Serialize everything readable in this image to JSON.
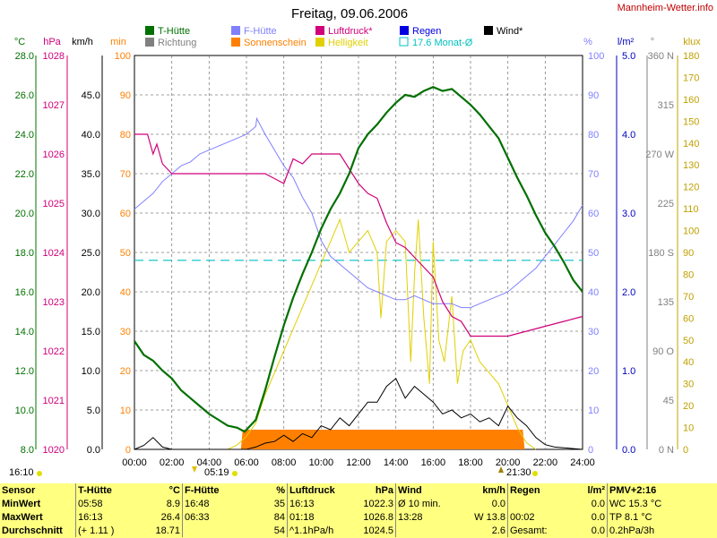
{
  "title": "Freitag, 09.06.2006",
  "site": "Mannheim-Wetter.info",
  "legend": [
    {
      "label": "T-Hütte",
      "color": "#007000"
    },
    {
      "label": "F-Hütte",
      "color": "#8080ff"
    },
    {
      "label": "Luftdruck*",
      "color": "#d0007a"
    },
    {
      "label": "Regen",
      "color": "#0000e0"
    },
    {
      "label": "Wind*",
      "color": "#000000"
    },
    {
      "label": "Richtung",
      "color": "#808080"
    },
    {
      "label": "Sonnenschein",
      "color": "#ff8000"
    },
    {
      "label": "Helligkeit",
      "color": "#e0d000"
    },
    {
      "label": "17.6 Monat-Ø",
      "color": "#00c0c0"
    }
  ],
  "axis_units": {
    "temp": "°C",
    "press": "hPa",
    "wind": "km/h",
    "min": "min",
    "pct": "%",
    "rain": "l/m²",
    "dir": "°",
    "klux": "klux"
  },
  "axis_ticks": {
    "temp": [
      "28.0",
      "26.0",
      "24.0",
      "22.0",
      "20.0",
      "18.0",
      "16.0",
      "14.0",
      "12.0",
      "10.0",
      "8.0"
    ],
    "press": [
      "1028",
      "1027",
      "1026",
      "1025",
      "1024",
      "1023",
      "1022",
      "1021",
      "1020"
    ],
    "wind": [
      "45.0",
      "40.0",
      "35.0",
      "30.0",
      "25.0",
      "20.0",
      "15.0",
      "10.0",
      "5.0",
      "0.0"
    ],
    "min": [
      "100",
      "90",
      "80",
      "70",
      "60",
      "50",
      "40",
      "30",
      "20",
      "10",
      "0"
    ],
    "pct": [
      "100",
      "90",
      "80",
      "70",
      "60",
      "50",
      "40",
      "30",
      "20",
      "10",
      "0"
    ],
    "rain": [
      "5.0",
      "4.0",
      "3.0",
      "2.0",
      "1.0",
      "0.0"
    ],
    "dir": [
      "360 N",
      "315",
      "270 W",
      "225",
      "180 S",
      "135",
      "90 O",
      "45",
      "0 N"
    ],
    "klux": [
      "180",
      "170",
      "160",
      "150",
      "140",
      "130",
      "120",
      "110",
      "100",
      "90",
      "80",
      "70",
      "60",
      "50",
      "40",
      "30",
      "20",
      "10",
      "0"
    ],
    "x": [
      "00:00",
      "02:00",
      "04:00",
      "06:00",
      "08:00",
      "10:00",
      "12:00",
      "14:00",
      "16:00",
      "18:00",
      "20:00",
      "22:00",
      "24:00"
    ]
  },
  "markers": {
    "left_time": "16:10",
    "sunrise": "05:19",
    "sunset": "21:30"
  },
  "chart_data": {
    "type": "line",
    "title": "Freitag, 09.06.2006",
    "x_unit": "hour",
    "xlim": [
      0,
      24
    ],
    "series": [
      {
        "name": "T-Hütte",
        "unit": "°C",
        "ylim": [
          8,
          28
        ],
        "x": [
          0,
          0.5,
          1,
          1.5,
          2,
          2.5,
          3,
          3.5,
          4,
          4.5,
          5,
          5.5,
          5.9,
          6.5,
          7,
          7.5,
          8,
          8.5,
          9,
          9.5,
          10,
          10.5,
          11,
          11.5,
          12,
          12.5,
          13,
          13.5,
          14,
          14.5,
          15,
          15.5,
          16,
          16.5,
          17,
          17.5,
          18,
          18.5,
          19,
          19.5,
          20,
          20.5,
          21,
          21.5,
          22,
          22.5,
          23,
          23.5,
          24
        ],
        "y": [
          13.5,
          12.8,
          12.5,
          12.0,
          11.6,
          11.0,
          10.6,
          10.2,
          9.8,
          9.5,
          9.2,
          9.1,
          8.9,
          9.5,
          11.0,
          12.7,
          14.3,
          15.7,
          16.9,
          18.0,
          19.2,
          20.2,
          21.0,
          22.0,
          23.3,
          24.0,
          24.5,
          25.1,
          25.6,
          26.0,
          25.9,
          26.2,
          26.4,
          26.2,
          26.3,
          25.9,
          25.5,
          25.0,
          24.4,
          23.8,
          22.8,
          21.8,
          20.9,
          19.9,
          19.0,
          18.3,
          17.5,
          16.6,
          16.0
        ]
      },
      {
        "name": "F-Hütte",
        "unit": "%",
        "ylim": [
          0,
          100
        ],
        "x": [
          0,
          0.5,
          1,
          1.5,
          2,
          2.5,
          3,
          3.5,
          4,
          4.5,
          5,
          5.5,
          6,
          6.5,
          6.55,
          7,
          7.5,
          8,
          8.5,
          9,
          9.5,
          10,
          10.5,
          11,
          11.5,
          12,
          12.5,
          13,
          13.5,
          14,
          14.5,
          15,
          15.5,
          16,
          16.5,
          17,
          17.5,
          18,
          18.5,
          19,
          19.5,
          20,
          20.5,
          21,
          21.5,
          22,
          22.5,
          23,
          23.5,
          24
        ],
        "y": [
          61,
          63,
          65,
          68,
          70,
          72,
          73,
          75,
          76,
          77,
          78,
          79,
          80,
          82,
          84,
          80,
          76,
          72,
          69,
          64,
          60,
          53,
          49,
          47,
          45,
          43,
          41,
          40,
          39,
          38,
          38,
          39,
          38,
          37,
          37,
          37,
          36,
          36,
          37,
          38,
          39,
          40,
          42,
          44,
          46,
          49,
          52,
          55,
          58,
          62
        ]
      },
      {
        "name": "Luftdruck*",
        "unit": "hPa",
        "ylim": [
          1020,
          1028
        ],
        "x": [
          0,
          0.7,
          1,
          1.2,
          1.5,
          2,
          2.5,
          3,
          4,
          5,
          6,
          7,
          7.5,
          8,
          8.2,
          8.5,
          9,
          9.5,
          10,
          11,
          11.5,
          12,
          12.5,
          13,
          13.5,
          14,
          14.5,
          15,
          15.5,
          16,
          16.5,
          17,
          17.5,
          18,
          18.5,
          19,
          20,
          21,
          22,
          23,
          24
        ],
        "y": [
          1026.4,
          1026.4,
          1026.0,
          1026.2,
          1025.8,
          1025.6,
          1025.6,
          1025.6,
          1025.6,
          1025.6,
          1025.6,
          1025.6,
          1025.5,
          1025.4,
          1025.6,
          1025.9,
          1025.8,
          1026.0,
          1026.0,
          1026.0,
          1025.7,
          1025.4,
          1025.2,
          1025.1,
          1024.6,
          1024.2,
          1024.1,
          1023.9,
          1023.7,
          1023.5,
          1023.0,
          1022.7,
          1022.6,
          1022.3,
          1022.3,
          1022.3,
          1022.3,
          1022.4,
          1022.5,
          1022.6,
          1022.7
        ]
      },
      {
        "name": "Wind*",
        "unit": "km/h",
        "ylim": [
          0,
          50
        ],
        "x": [
          0,
          0.5,
          1,
          1.5,
          2,
          3,
          4,
          5,
          6,
          6.5,
          7,
          7.5,
          8,
          8.5,
          9,
          9.5,
          10,
          10.5,
          11,
          11.5,
          12,
          12.5,
          13,
          13.5,
          14,
          14.5,
          15,
          15.5,
          16,
          16.5,
          17,
          17.5,
          18,
          18.5,
          19,
          19.5,
          20,
          20.5,
          21,
          21.5,
          22,
          22.5,
          23,
          24
        ],
        "y": [
          0,
          0.5,
          1.5,
          0.3,
          0,
          0,
          0,
          0,
          0,
          0.3,
          0.8,
          1.0,
          1.8,
          1.0,
          2.0,
          1.5,
          3.0,
          2.5,
          4.0,
          3.0,
          4.5,
          6.0,
          6.0,
          8.0,
          9.0,
          6.5,
          8.0,
          7.0,
          6.0,
          4.5,
          5.0,
          4.0,
          4.5,
          3.5,
          4.0,
          3.0,
          5.5,
          4.0,
          3.0,
          1.5,
          0.6,
          0.3,
          0.2,
          0
        ]
      },
      {
        "name": "Helligkeit",
        "unit": "klux",
        "ylim": [
          0,
          180
        ],
        "x": [
          5,
          5.5,
          6,
          6.5,
          7,
          7.5,
          8,
          8.5,
          9,
          9.5,
          10,
          10.5,
          11,
          11.5,
          12,
          12.5,
          13,
          13.2,
          13.5,
          14,
          14.5,
          14.8,
          15,
          15.2,
          15.5,
          15.8,
          16,
          16.3,
          16.6,
          17,
          17.3,
          17.6,
          18,
          18.5,
          19,
          19.5,
          20,
          20.5,
          21,
          21.5
        ],
        "y": [
          0,
          2,
          6,
          12,
          25,
          35,
          45,
          55,
          65,
          75,
          85,
          95,
          105,
          90,
          95,
          100,
          90,
          60,
          95,
          100,
          95,
          40,
          80,
          105,
          60,
          30,
          95,
          50,
          40,
          70,
          30,
          45,
          50,
          40,
          35,
          30,
          20,
          10,
          3,
          0
        ]
      },
      {
        "name": "Sonnenschein",
        "unit": "min",
        "ylim": [
          0,
          100
        ],
        "x": [
          5.7,
          5.8,
          20.8,
          20.9
        ],
        "y": [
          0,
          5,
          5,
          0
        ]
      }
    ],
    "month_avg": {
      "label": "17.6 Monat-Ø",
      "value": 17.6,
      "unit": "°C"
    }
  },
  "table": {
    "headers": [
      "Sensor",
      "T-Hütte",
      "°C",
      "F-Hütte",
      "%",
      "Luftdruck",
      "hPa",
      "Wind",
      "km/h",
      "Regen",
      "l/m²",
      "PMV+2:16"
    ],
    "rows": [
      {
        "label": "MinWert",
        "t_time": "05:58",
        "t_val": "8.9",
        "f_time": "16:48",
        "f_val": "35",
        "p_time": "16:13",
        "p_val": "1022.3",
        "w_time": "Ø 10 min.",
        "w_val": "0.0",
        "r_time": "",
        "r_val": "0.0",
        "pmv": "WC 15.3 °C"
      },
      {
        "label": "MaxWert",
        "t_time": "16:13",
        "t_val": "26.4",
        "f_time": "06:33",
        "f_val": "84",
        "p_time": "01:18",
        "p_val": "1026.8",
        "w_time": "13:28",
        "w_val": "W 13.8",
        "r_time": "00:02",
        "r_val": "0.0",
        "pmv": "TP 8.1 °C"
      },
      {
        "label": "Durchschnitt",
        "t_time": "(+ 1.11 )",
        "t_val": "18.71",
        "f_time": "",
        "f_val": "54",
        "p_time": "^1.1hPa/h",
        "p_val": "1024.5",
        "w_time": "",
        "w_val": "2.6",
        "r_time": "Gesamt:",
        "r_val": "0.0",
        "pmv": "0.2hPa/3h"
      }
    ]
  }
}
